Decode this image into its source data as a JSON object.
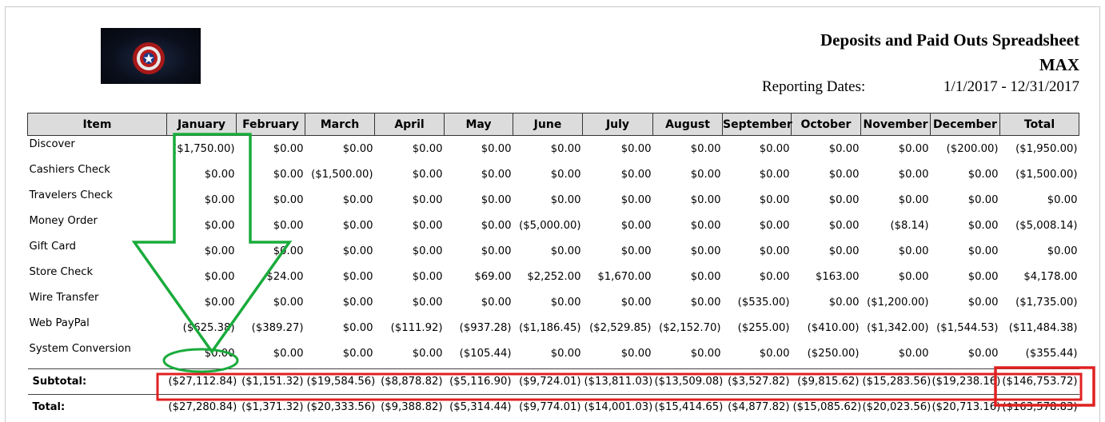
{
  "report": {
    "title": "Deposits and Paid Outs Spreadsheet",
    "store": "MAX",
    "reporting_label": "Reporting Dates:",
    "date_range": "1/1/2017 - 12/31/2017"
  },
  "logo": {
    "icon": "captain-america-shield-icon"
  },
  "table": {
    "headers": [
      "Item",
      "January",
      "February",
      "March",
      "April",
      "May",
      "June",
      "July",
      "August",
      "September",
      "October",
      "November",
      "December",
      "Total"
    ],
    "rows": [
      {
        "item": "Discover",
        "values": [
          "($1,750.00)",
          "$0.00",
          "$0.00",
          "$0.00",
          "$0.00",
          "$0.00",
          "$0.00",
          "$0.00",
          "$0.00",
          "$0.00",
          "$0.00",
          "($200.00)",
          "($1,950.00)"
        ]
      },
      {
        "item": "Cashiers Check",
        "values": [
          "$0.00",
          "$0.00",
          "($1,500.00)",
          "$0.00",
          "$0.00",
          "$0.00",
          "$0.00",
          "$0.00",
          "$0.00",
          "$0.00",
          "$0.00",
          "$0.00",
          "($1,500.00)"
        ]
      },
      {
        "item": "Travelers Check",
        "values": [
          "$0.00",
          "$0.00",
          "$0.00",
          "$0.00",
          "$0.00",
          "$0.00",
          "$0.00",
          "$0.00",
          "$0.00",
          "$0.00",
          "$0.00",
          "$0.00",
          "$0.00"
        ]
      },
      {
        "item": "Money Order",
        "values": [
          "$0.00",
          "$0.00",
          "$0.00",
          "$0.00",
          "$0.00",
          "($5,000.00)",
          "$0.00",
          "$0.00",
          "$0.00",
          "$0.00",
          "($8.14)",
          "$0.00",
          "($5,008.14)"
        ]
      },
      {
        "item": "Gift Card",
        "values": [
          "$0.00",
          "$0.00",
          "$0.00",
          "$0.00",
          "$0.00",
          "$0.00",
          "$0.00",
          "$0.00",
          "$0.00",
          "$0.00",
          "$0.00",
          "$0.00",
          "$0.00"
        ]
      },
      {
        "item": "Store Check",
        "values": [
          "$0.00",
          "$24.00",
          "$0.00",
          "$0.00",
          "$69.00",
          "$2,252.00",
          "$1,670.00",
          "$0.00",
          "$0.00",
          "$163.00",
          "$0.00",
          "$0.00",
          "$4,178.00"
        ]
      },
      {
        "item": "Wire Transfer",
        "values": [
          "$0.00",
          "$0.00",
          "$0.00",
          "$0.00",
          "$0.00",
          "$0.00",
          "$0.00",
          "$0.00",
          "($535.00)",
          "$0.00",
          "($1,200.00)",
          "$0.00",
          "($1,735.00)"
        ]
      },
      {
        "item": "Web PayPal",
        "values": [
          "($625.38)",
          "($389.27)",
          "$0.00",
          "($111.92)",
          "($937.28)",
          "($1,186.45)",
          "($2,529.85)",
          "($2,152.70)",
          "($255.00)",
          "($410.00)",
          "($1,342.00)",
          "($1,544.53)",
          "($11,484.38)"
        ]
      },
      {
        "item": "System Conversion",
        "values": [
          "$0.00",
          "$0.00",
          "$0.00",
          "$0.00",
          "($105.44)",
          "$0.00",
          "$0.00",
          "$0.00",
          "$0.00",
          "($250.00)",
          "$0.00",
          "$0.00",
          "($355.44)"
        ]
      }
    ],
    "subtotal": {
      "label": "Subtotal:",
      "values": [
        "($27,112.84)",
        "($1,151.32)",
        "($19,584.56)",
        "($8,878.82)",
        "($5,116.90)",
        "($9,724.01)",
        "($13,811.03)",
        "($13,509.08)",
        "($3,527.82)",
        "($9,815.62)",
        "($15,283.56)",
        "($19,238.16)",
        "($146,753.72)"
      ]
    },
    "total": {
      "label": "Total:",
      "values": [
        "($27,280.84)",
        "($1,371.32)",
        "($20,333.56)",
        "($9,388.82)",
        "($5,314.44)",
        "($9,774.01)",
        "($14,001.03)",
        "($15,414.65)",
        "($4,877.82)",
        "($15,085.62)",
        "($20,023.56)",
        "($20,713.16)",
        "($163,578.83)"
      ]
    }
  },
  "annotations": {
    "green_color": "#1aab3c",
    "red_color": "#e02020"
  }
}
